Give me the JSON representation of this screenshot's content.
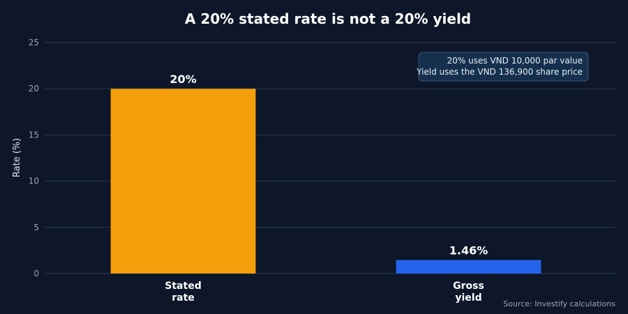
{
  "chart_data": {
    "type": "bar",
    "title": "A 20% stated rate is not a 20% yield",
    "ylabel": "Rate (%)",
    "xlabel": "",
    "ylim": [
      0,
      25
    ],
    "yticks": [
      0,
      5,
      10,
      15,
      20,
      25
    ],
    "grid": true,
    "categories": [
      [
        "Stated",
        "rate"
      ],
      [
        "Gross",
        "yield"
      ]
    ],
    "values": [
      20,
      1.46
    ],
    "value_labels": [
      "20%",
      "1.46%"
    ],
    "bar_colors": [
      "#f59e0b",
      "#2563eb"
    ],
    "annotation": {
      "lines": [
        "20% uses VND 10,000 par value",
        "Yield uses the VND 136,900 share price"
      ],
      "placement": "top-right"
    },
    "source": "Source: Investify calculations"
  },
  "colors": {
    "background": "#0d1729",
    "grid": "#2a3a52",
    "annotation_fill": "#15304d",
    "annotation_stroke": "#3b5878"
  }
}
